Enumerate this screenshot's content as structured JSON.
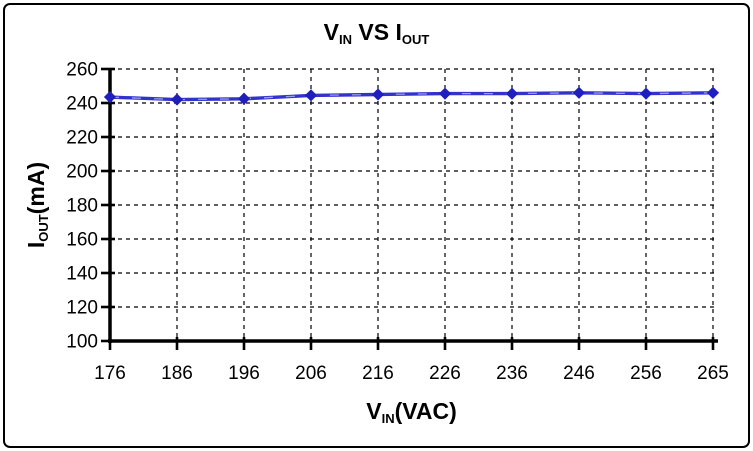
{
  "frame": {
    "background": "#ffffff",
    "border_color": "#000000"
  },
  "chart_data": {
    "type": "line",
    "title": "V_IN VS I_OUT",
    "title_parts": [
      {
        "text": "V"
      },
      {
        "text": "IN",
        "sub": true
      },
      {
        "text": " VS I"
      },
      {
        "text": "OUT",
        "sub": true
      }
    ],
    "xlabel": "V_IN(VAC)",
    "xlabel_parts": [
      {
        "text": "V"
      },
      {
        "text": "IN",
        "sub": true
      },
      {
        "text": "(VAC)"
      }
    ],
    "ylabel": "I_OUT(mA)",
    "ylabel_parts": [
      {
        "text": "I"
      },
      {
        "text": "OUT",
        "sub": true
      },
      {
        "text": "(mA)"
      }
    ],
    "categories": [
      176,
      186,
      196,
      206,
      216,
      226,
      236,
      246,
      256,
      265
    ],
    "series": [
      {
        "name": "I_OUT",
        "values": [
          243.5,
          242,
          242.5,
          244.5,
          245,
          245.5,
          245.5,
          246,
          245.5,
          246
        ]
      }
    ],
    "ylim": [
      100,
      260
    ],
    "ytick_step": 20,
    "yticks": [
      100,
      120,
      140,
      160,
      180,
      200,
      220,
      240,
      260
    ],
    "grid": {
      "horizontal": true,
      "vertical": true,
      "style": "dashed",
      "color": "#000000"
    },
    "legend": "none",
    "line_color": "#3232cd",
    "line_highlight": "#9b9bec",
    "marker": {
      "shape": "diamond",
      "color": "#1f1fbe"
    },
    "axis_color": "#000000",
    "tick_label_color": "#000000"
  }
}
